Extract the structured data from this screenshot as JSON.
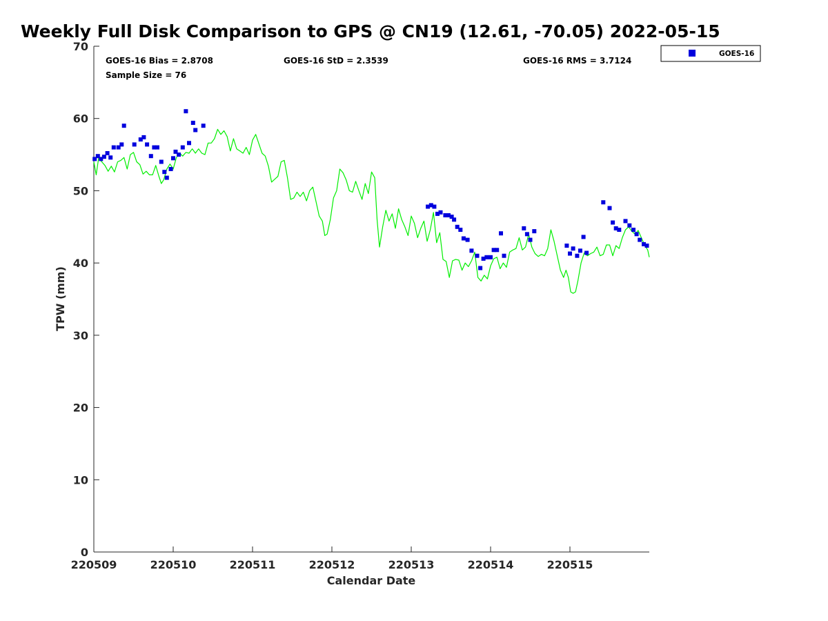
{
  "chart_data": {
    "type": "scatter",
    "title": "Weekly Full Disk Comparison to GPS @ CN19 (12.61, -70.05) 2022-05-15",
    "xlabel": "Calendar Date",
    "ylabel": "TPW (mm)",
    "xlim": [
      0,
      7
    ],
    "ylim": [
      0,
      70
    ],
    "x_tick_labels": [
      "220509",
      "220510",
      "220511",
      "220512",
      "220513",
      "220514",
      "220515"
    ],
    "x_tick_values": [
      0,
      1,
      2,
      3,
      4,
      5,
      6
    ],
    "y_tick_values": [
      0,
      10,
      20,
      30,
      40,
      50,
      60,
      70
    ],
    "y_tick_labels": [
      "0",
      "10",
      "20",
      "30",
      "40",
      "50",
      "60",
      "70"
    ],
    "grid": false,
    "legend_position": "top-right, outside plot",
    "stats": {
      "bias": "GOES-16 Bias = 2.8708",
      "std": "GOES-16 StD = 2.3539",
      "rms": "GOES-16 RMS = 3.7124",
      "sample_size": "Sample Size = 76"
    },
    "series": [
      {
        "name": "GOES-16",
        "kind": "scatter",
        "marker": "square",
        "color": "#0000dd",
        "points": [
          [
            0.01,
            54.4
          ],
          [
            0.05,
            54.8
          ],
          [
            0.09,
            54.4
          ],
          [
            0.13,
            54.7
          ],
          [
            0.17,
            55.2
          ],
          [
            0.21,
            54.6
          ],
          [
            0.25,
            56.0
          ],
          [
            0.31,
            56.0
          ],
          [
            0.35,
            56.4
          ],
          [
            0.38,
            59.0
          ],
          [
            0.51,
            56.4
          ],
          [
            0.59,
            57.1
          ],
          [
            0.63,
            57.4
          ],
          [
            0.67,
            56.4
          ],
          [
            0.72,
            54.8
          ],
          [
            0.76,
            56.0
          ],
          [
            0.8,
            56.0
          ],
          [
            0.85,
            54.0
          ],
          [
            0.89,
            52.6
          ],
          [
            0.92,
            51.8
          ],
          [
            0.97,
            53.0
          ],
          [
            1.0,
            54.5
          ],
          [
            1.03,
            55.4
          ],
          [
            1.07,
            55.0
          ],
          [
            1.12,
            56.0
          ],
          [
            1.16,
            61.0
          ],
          [
            1.2,
            56.6
          ],
          [
            1.25,
            59.4
          ],
          [
            1.28,
            58.4
          ],
          [
            1.38,
            59.0
          ],
          [
            4.21,
            47.8
          ],
          [
            4.25,
            48.0
          ],
          [
            4.29,
            47.8
          ],
          [
            4.33,
            46.8
          ],
          [
            4.37,
            47.0
          ],
          [
            4.43,
            46.6
          ],
          [
            4.47,
            46.6
          ],
          [
            4.51,
            46.4
          ],
          [
            4.54,
            46.0
          ],
          [
            4.58,
            45.0
          ],
          [
            4.62,
            44.6
          ],
          [
            4.66,
            43.4
          ],
          [
            4.71,
            43.2
          ],
          [
            4.76,
            41.7
          ],
          [
            4.83,
            41.0
          ],
          [
            4.87,
            39.3
          ],
          [
            4.91,
            40.6
          ],
          [
            4.95,
            40.8
          ],
          [
            5.0,
            40.8
          ],
          [
            5.04,
            41.8
          ],
          [
            5.08,
            41.8
          ],
          [
            5.13,
            44.1
          ],
          [
            5.17,
            41.0
          ],
          [
            5.42,
            44.8
          ],
          [
            5.46,
            44.0
          ],
          [
            5.5,
            43.2
          ],
          [
            5.55,
            44.4
          ],
          [
            5.96,
            42.4
          ],
          [
            6.0,
            41.3
          ],
          [
            6.04,
            42.0
          ],
          [
            6.09,
            41.0
          ],
          [
            6.13,
            41.7
          ],
          [
            6.17,
            43.6
          ],
          [
            6.21,
            41.4
          ],
          [
            6.42,
            48.4
          ],
          [
            6.5,
            47.6
          ],
          [
            6.54,
            45.6
          ],
          [
            6.58,
            44.8
          ],
          [
            6.62,
            44.6
          ],
          [
            6.7,
            45.8
          ],
          [
            6.75,
            45.2
          ],
          [
            6.8,
            44.6
          ],
          [
            6.84,
            44.0
          ],
          [
            6.88,
            43.2
          ],
          [
            6.93,
            42.6
          ],
          [
            6.97,
            42.4
          ]
        ]
      },
      {
        "name": "",
        "kind": "line",
        "color": "#00ee00",
        "points": [
          [
            0.0,
            54.0
          ],
          [
            0.03,
            52.2
          ],
          [
            0.06,
            54.5
          ],
          [
            0.1,
            54.0
          ],
          [
            0.14,
            53.5
          ],
          [
            0.18,
            52.7
          ],
          [
            0.22,
            53.4
          ],
          [
            0.26,
            52.6
          ],
          [
            0.3,
            54.0
          ],
          [
            0.34,
            54.2
          ],
          [
            0.38,
            54.6
          ],
          [
            0.42,
            53.0
          ],
          [
            0.46,
            55.0
          ],
          [
            0.5,
            55.3
          ],
          [
            0.54,
            54.0
          ],
          [
            0.58,
            53.6
          ],
          [
            0.62,
            52.3
          ],
          [
            0.66,
            52.7
          ],
          [
            0.7,
            52.2
          ],
          [
            0.74,
            52.2
          ],
          [
            0.78,
            53.5
          ],
          [
            0.82,
            52.0
          ],
          [
            0.85,
            51.0
          ],
          [
            0.88,
            51.5
          ],
          [
            0.92,
            53.0
          ],
          [
            0.96,
            53.7
          ],
          [
            1.0,
            53.0
          ],
          [
            1.04,
            54.6
          ],
          [
            1.08,
            55.2
          ],
          [
            1.12,
            54.8
          ],
          [
            1.16,
            55.3
          ],
          [
            1.2,
            55.2
          ],
          [
            1.24,
            55.8
          ],
          [
            1.28,
            55.2
          ],
          [
            1.32,
            55.8
          ],
          [
            1.36,
            55.2
          ],
          [
            1.4,
            55.0
          ],
          [
            1.44,
            56.6
          ],
          [
            1.48,
            56.6
          ],
          [
            1.52,
            57.2
          ],
          [
            1.56,
            58.5
          ],
          [
            1.6,
            57.8
          ],
          [
            1.64,
            58.3
          ],
          [
            1.68,
            57.5
          ],
          [
            1.72,
            55.5
          ],
          [
            1.76,
            57.2
          ],
          [
            1.8,
            55.8
          ],
          [
            1.84,
            55.5
          ],
          [
            1.88,
            55.2
          ],
          [
            1.92,
            56.0
          ],
          [
            1.96,
            55.0
          ],
          [
            2.0,
            57.0
          ],
          [
            2.04,
            57.8
          ],
          [
            2.08,
            56.5
          ],
          [
            2.12,
            55.2
          ],
          [
            2.16,
            54.8
          ],
          [
            2.2,
            53.4
          ],
          [
            2.24,
            51.2
          ],
          [
            2.28,
            51.6
          ],
          [
            2.32,
            52.0
          ],
          [
            2.36,
            54.0
          ],
          [
            2.4,
            54.2
          ],
          [
            2.44,
            51.8
          ],
          [
            2.48,
            48.8
          ],
          [
            2.52,
            49.0
          ],
          [
            2.56,
            49.8
          ],
          [
            2.6,
            49.2
          ],
          [
            2.64,
            49.8
          ],
          [
            2.68,
            48.6
          ],
          [
            2.72,
            50.0
          ],
          [
            2.76,
            50.5
          ],
          [
            2.8,
            48.5
          ],
          [
            2.84,
            46.5
          ],
          [
            2.88,
            45.8
          ],
          [
            2.91,
            43.8
          ],
          [
            2.94,
            44.0
          ],
          [
            2.98,
            46.0
          ],
          [
            3.02,
            49.0
          ],
          [
            3.06,
            50.0
          ],
          [
            3.1,
            53.0
          ],
          [
            3.14,
            52.5
          ],
          [
            3.18,
            51.5
          ],
          [
            3.22,
            50.0
          ],
          [
            3.26,
            49.8
          ],
          [
            3.3,
            51.3
          ],
          [
            3.34,
            50.0
          ],
          [
            3.38,
            48.8
          ],
          [
            3.42,
            51.0
          ],
          [
            3.46,
            49.6
          ],
          [
            3.5,
            52.6
          ],
          [
            3.54,
            51.8
          ],
          [
            3.57,
            46.0
          ],
          [
            3.6,
            42.2
          ],
          [
            3.64,
            45.0
          ],
          [
            3.68,
            47.3
          ],
          [
            3.72,
            45.8
          ],
          [
            3.76,
            46.8
          ],
          [
            3.8,
            44.8
          ],
          [
            3.84,
            47.5
          ],
          [
            3.88,
            46.0
          ],
          [
            3.92,
            45.0
          ],
          [
            3.96,
            43.8
          ],
          [
            4.0,
            46.5
          ],
          [
            4.04,
            45.5
          ],
          [
            4.08,
            43.5
          ],
          [
            4.12,
            44.8
          ],
          [
            4.16,
            45.8
          ],
          [
            4.2,
            43.0
          ],
          [
            4.24,
            44.6
          ],
          [
            4.28,
            47.0
          ],
          [
            4.32,
            42.8
          ],
          [
            4.36,
            44.2
          ],
          [
            4.4,
            40.5
          ],
          [
            4.44,
            40.2
          ],
          [
            4.48,
            38.0
          ],
          [
            4.52,
            40.3
          ],
          [
            4.56,
            40.5
          ],
          [
            4.6,
            40.4
          ],
          [
            4.64,
            39.0
          ],
          [
            4.68,
            40.0
          ],
          [
            4.72,
            39.5
          ],
          [
            4.76,
            40.3
          ],
          [
            4.8,
            41.5
          ],
          [
            4.84,
            38.0
          ],
          [
            4.88,
            37.5
          ],
          [
            4.92,
            38.3
          ],
          [
            4.96,
            37.8
          ],
          [
            5.0,
            39.6
          ],
          [
            5.04,
            40.6
          ],
          [
            5.08,
            40.8
          ],
          [
            5.12,
            39.2
          ],
          [
            5.16,
            40.0
          ],
          [
            5.2,
            39.4
          ],
          [
            5.24,
            41.5
          ],
          [
            5.28,
            41.8
          ],
          [
            5.32,
            42.0
          ],
          [
            5.36,
            43.5
          ],
          [
            5.4,
            41.8
          ],
          [
            5.44,
            42.2
          ],
          [
            5.48,
            44.0
          ],
          [
            5.52,
            42.2
          ],
          [
            5.56,
            41.3
          ],
          [
            5.6,
            40.9
          ],
          [
            5.64,
            41.2
          ],
          [
            5.68,
            41.0
          ],
          [
            5.72,
            42.0
          ],
          [
            5.76,
            44.6
          ],
          [
            5.8,
            43.0
          ],
          [
            5.84,
            41.0
          ],
          [
            5.88,
            39.0
          ],
          [
            5.92,
            38.0
          ],
          [
            5.95,
            39.0
          ],
          [
            5.98,
            38.0
          ],
          [
            6.01,
            36.0
          ],
          [
            6.04,
            35.8
          ],
          [
            6.07,
            36.0
          ],
          [
            6.1,
            37.5
          ],
          [
            6.14,
            40.0
          ],
          [
            6.18,
            41.4
          ],
          [
            6.22,
            41.0
          ],
          [
            6.26,
            41.3
          ],
          [
            6.3,
            41.5
          ],
          [
            6.34,
            42.2
          ],
          [
            6.38,
            41.0
          ],
          [
            6.42,
            41.2
          ],
          [
            6.46,
            42.5
          ],
          [
            6.5,
            42.5
          ],
          [
            6.54,
            41.0
          ],
          [
            6.58,
            42.4
          ],
          [
            6.62,
            42.0
          ],
          [
            6.66,
            43.5
          ],
          [
            6.7,
            44.6
          ],
          [
            6.74,
            45.0
          ],
          [
            6.78,
            44.4
          ],
          [
            6.82,
            44.0
          ],
          [
            6.86,
            44.5
          ],
          [
            6.9,
            43.5
          ],
          [
            6.94,
            42.5
          ],
          [
            6.98,
            41.8
          ],
          [
            7.0,
            40.8
          ]
        ]
      }
    ]
  }
}
